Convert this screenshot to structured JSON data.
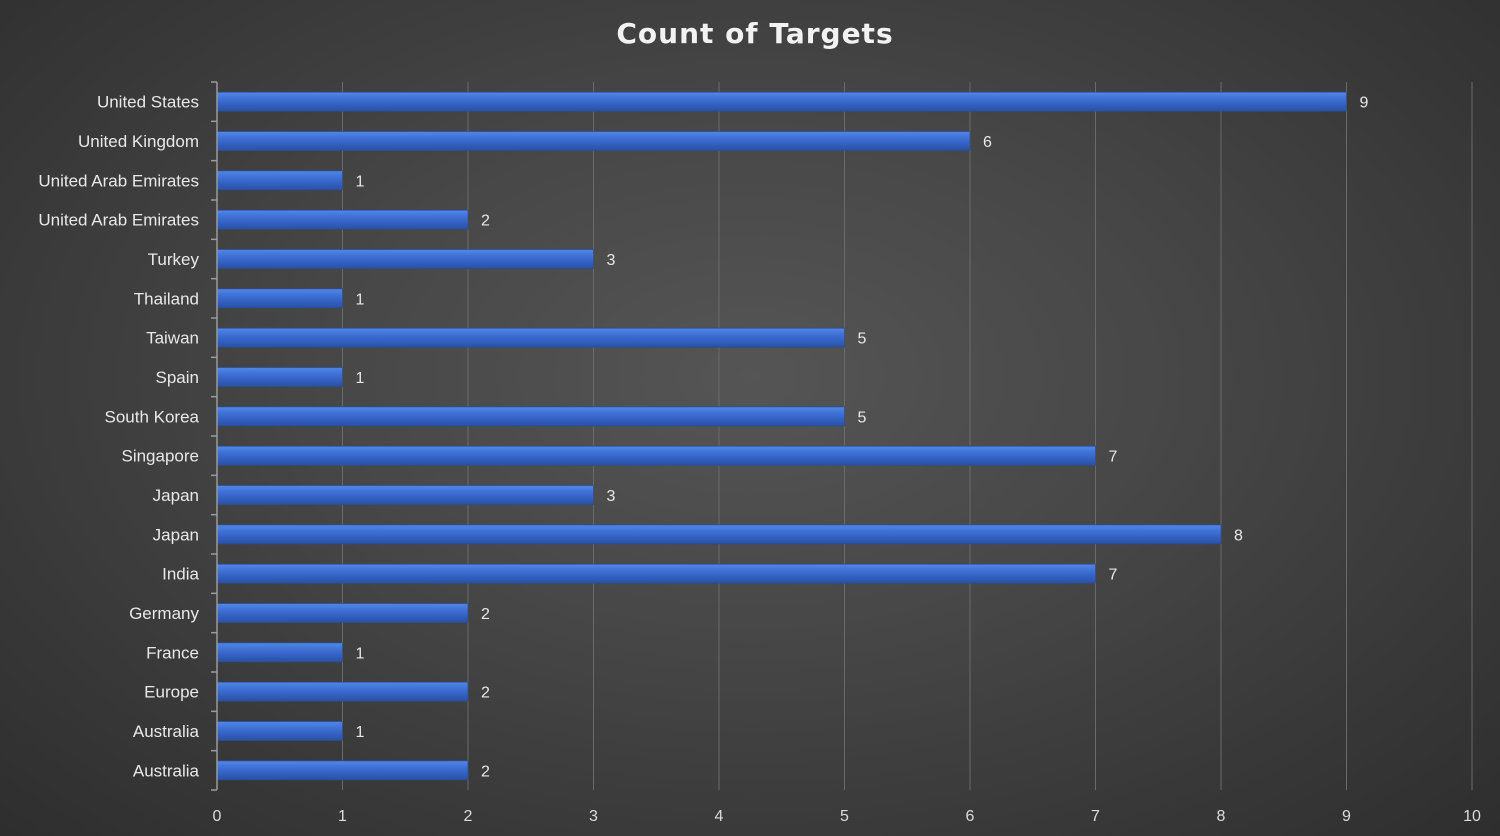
{
  "chart_data": {
    "type": "bar",
    "orientation": "horizontal",
    "title": "Count of Targets",
    "categories": [
      "United States",
      "United Kingdom",
      "United Arab Emirates",
      "United Arab Emirates",
      "Turkey",
      "Thailand",
      "Taiwan",
      "Spain",
      "South Korea",
      "Singapore",
      "Japan",
      "Japan",
      "India",
      "Germany",
      "France",
      "Europe",
      "Australia",
      "Australia"
    ],
    "values": [
      9,
      6,
      1,
      2,
      3,
      1,
      5,
      1,
      5,
      7,
      3,
      8,
      7,
      2,
      1,
      2,
      1,
      2
    ],
    "xlim": [
      0,
      10
    ],
    "x_ticks": [
      0,
      1,
      2,
      3,
      4,
      5,
      6,
      7,
      8,
      9,
      10
    ],
    "grid": true,
    "legend": "none",
    "data_labels": true,
    "bar_color": "#3a6bd0",
    "bar_color_light": "#5286e8",
    "bar_color_dark": "#2950a6"
  }
}
